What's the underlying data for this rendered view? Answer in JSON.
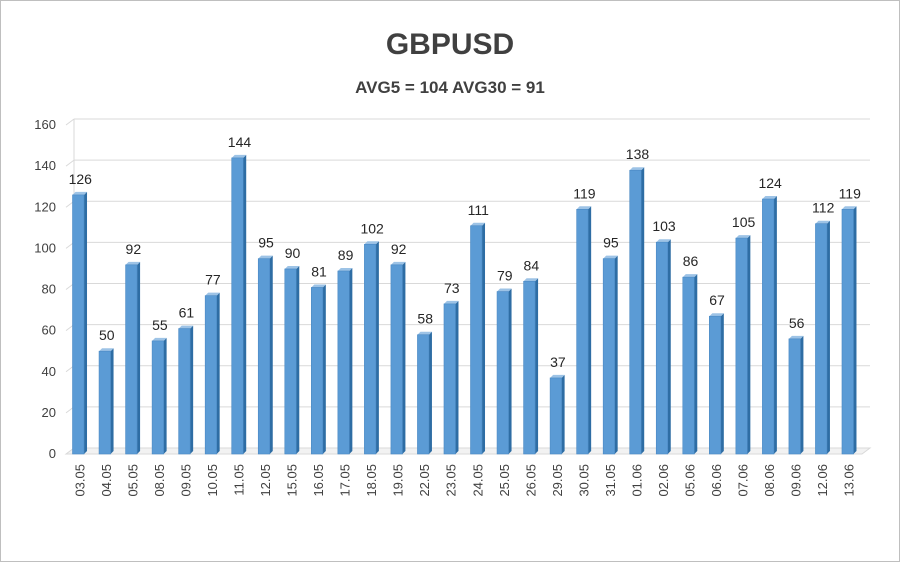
{
  "chart_data": {
    "type": "bar",
    "title": "GBPUSD",
    "subtitle": "AVG5 = 104 AVG30 = 91",
    "categories": [
      "03.05",
      "04.05",
      "05.05",
      "08.05",
      "09.05",
      "10.05",
      "11.05",
      "12.05",
      "15.05",
      "16.05",
      "17.05",
      "18.05",
      "19.05",
      "22.05",
      "23.05",
      "24.05",
      "25.05",
      "26.05",
      "29.05",
      "30.05",
      "31.05",
      "01.06",
      "02.06",
      "05.06",
      "06.06",
      "07.06",
      "08.06",
      "09.06",
      "12.06",
      "13.06"
    ],
    "values": [
      126,
      50,
      92,
      55,
      61,
      77,
      144,
      95,
      90,
      81,
      89,
      102,
      92,
      58,
      73,
      111,
      79,
      84,
      37,
      119,
      95,
      138,
      103,
      86,
      67,
      105,
      124,
      56,
      112,
      119
    ],
    "yticks": [
      "0",
      "20",
      "40",
      "60",
      "80",
      "100",
      "120",
      "140",
      "160"
    ],
    "ylim": [
      0,
      160
    ],
    "grid": true,
    "legend": "none",
    "colors": {
      "bar_front": "#5b9bd5",
      "bar_side": "#2e6da4",
      "bar_top": "#9dc3e6",
      "grid": "#d9d9d9"
    }
  }
}
